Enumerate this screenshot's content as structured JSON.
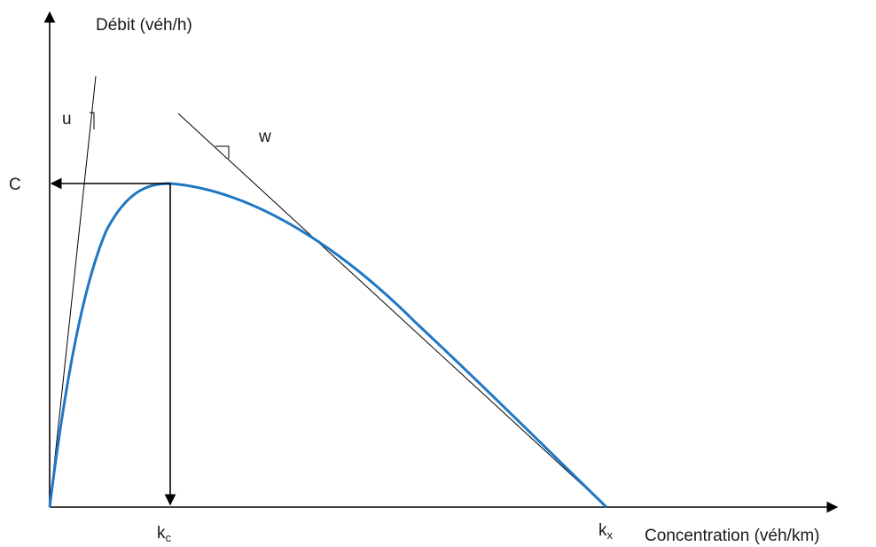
{
  "axes": {
    "y_label": "Débit (véh/h)",
    "x_label": "Concentration  (véh/km)"
  },
  "annotations": {
    "capacity": "C",
    "free_flow_speed": "u",
    "wave_speed": "w",
    "critical_density_base": "k",
    "critical_density_sub": "c",
    "jam_density_base": "k",
    "jam_density_sub": "x"
  },
  "colors": {
    "curve": "#1f77c4",
    "curve_tail": "#1f5fa0",
    "axis": "#000000",
    "tangent": "#000000"
  }
}
